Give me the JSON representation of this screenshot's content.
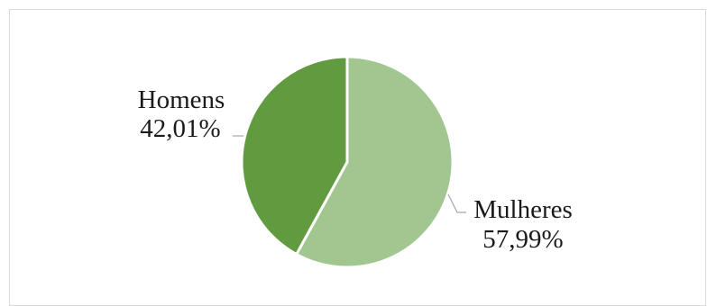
{
  "chart_data": {
    "type": "pie",
    "title": "",
    "slices": [
      {
        "label": "Mulheres",
        "value": 57.99,
        "value_text": "57,99%",
        "color": "#a2c690"
      },
      {
        "label": "Homens",
        "value": 42.01,
        "value_text": "42,01%",
        "color": "#629a40"
      }
    ],
    "start_angle_deg": 0,
    "direction": "clockwise",
    "slice_separator_color": "#ffffff",
    "legend": "none",
    "data_labels": "outside with leader lines"
  }
}
